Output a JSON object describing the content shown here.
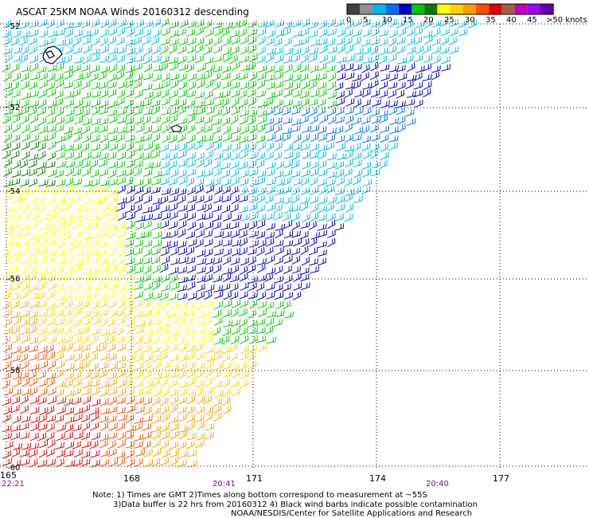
{
  "title": "ASCAT 25KM NOAA Winds 20160312 descending",
  "legend": {
    "swatches": [
      "#404040",
      "#909090",
      "#00b8f0",
      "#0070ff",
      "#0000c8",
      "#00c800",
      "#0a7800",
      "#ffff00",
      "#ffd000",
      "#ffa000",
      "#ff5000",
      "#e00000",
      "#a06040",
      "#c000c0",
      "#a000ff",
      "#6000b0"
    ],
    "labels": [
      "0",
      "5",
      "10",
      "15",
      "20",
      "25",
      "30",
      "35",
      "40",
      "45",
      ">50 knots"
    ],
    "units": "knots"
  },
  "axes": {
    "lat_labels": [
      "-52",
      "-52",
      "-54",
      "-56",
      "-58",
      "-60"
    ],
    "lon_labels": [
      "165",
      "168",
      "171",
      "174",
      "177"
    ]
  },
  "time_labels": [
    "22:21",
    "20:41",
    "20:40"
  ],
  "notes": {
    "line1": "Note: 1) Times are GMT 2)Times along bottom correspond to measurement at ~55S",
    "line2": "3)Data buffer is 22 hrs from 20160312 4) Black wind barbs indicate possible contamination",
    "line3": "NOAA/NESDIS/Center for Satellite Applications and Research"
  }
}
